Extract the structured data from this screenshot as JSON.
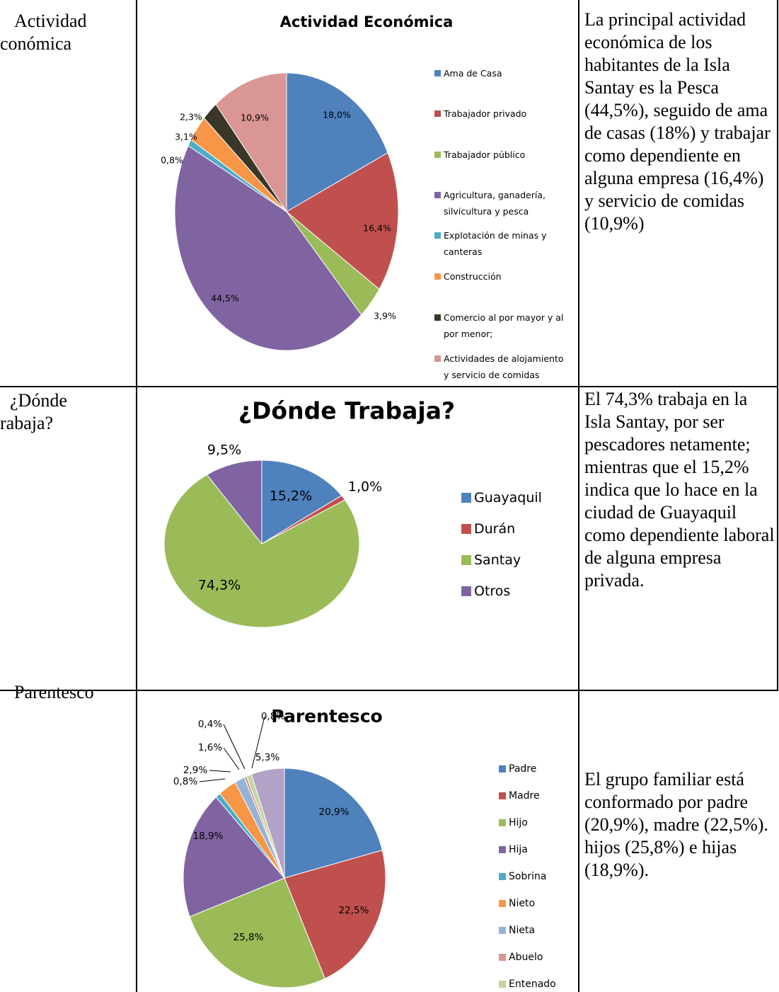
{
  "chart_data": [
    {
      "type": "pie",
      "title": "Actividad Económica",
      "categories": [
        "Ama de Casa",
        "Trabajador privado",
        "Trabajador público",
        "Agricultura, ganadería, silvicultura y pesca",
        "Explotación de minas y canteras",
        "Construcción",
        "Comercio al por mayor y al por menor;",
        "Actividades de alojamiento y servicio de comidas"
      ],
      "values": [
        18.0,
        16.4,
        3.9,
        44.5,
        0.8,
        3.1,
        2.3,
        10.9
      ],
      "value_labels": [
        "18,0%",
        "16,4%",
        "3,9%",
        "44,5%",
        "0,8%",
        "3,1%",
        "2,3%",
        "10,9%"
      ],
      "colors": [
        "#4f81bd",
        "#c0504d",
        "#9bbb59",
        "#8064a2",
        "#4bacc6",
        "#f79646",
        "#3a3628",
        "#d99694"
      ]
    },
    {
      "type": "pie",
      "title": "¿Dónde Trabaja?",
      "categories": [
        "Guayaquil",
        "Durán",
        "Santay",
        "Otros"
      ],
      "values": [
        15.2,
        1.0,
        74.3,
        9.5
      ],
      "value_labels": [
        "15,2%",
        "1,0%",
        "74,3%",
        "9,5%"
      ],
      "colors": [
        "#4f81bd",
        "#c0504d",
        "#9bbb59",
        "#8064a2"
      ]
    },
    {
      "type": "pie",
      "title": "Parentesco",
      "categories": [
        "Padre",
        "Madre",
        "Hijo",
        "Hija",
        "Sobrina",
        "Nieto",
        "Nieta",
        "Abuelo",
        "Entenado",
        null
      ],
      "values": [
        20.9,
        22.5,
        25.8,
        18.9,
        0.8,
        2.9,
        1.6,
        0.4,
        0.8,
        5.3
      ],
      "value_labels": [
        "20,9%",
        "22,5%",
        "25,8%",
        "18,9%",
        "0,8%",
        "2,9%",
        "1,6%",
        "0,4%",
        "0,8%",
        "5,3%"
      ],
      "colors": [
        "#4f81bd",
        "#c0504d",
        "#9bbb59",
        "#8064a2",
        "#4bacc6",
        "#f79646",
        "#95b3d7",
        "#d99694",
        "#c3d69b",
        "#b2a2c7"
      ]
    }
  ],
  "table": {
    "rows": [
      {
        "label": [
          "Actividad",
          "conómica"
        ],
        "text": "La principal actividad económica de los habitantes de la Isla Santay es la Pesca (44,5%), seguido de ama de casas (18%) y trabajar como dependiente en alguna empresa (16,4%) y servicio de comidas (10,9%)"
      },
      {
        "label": [
          "¿Dónde",
          "rabaja?"
        ],
        "text": "El 74,3% trabaja en la Isla Santay, por ser pescadores netamente; mientras que el 15,2% indica que lo hace en la ciudad de Guayaquil como dependiente laboral de alguna empresa privada."
      },
      {
        "label": [
          "Parentesco"
        ],
        "text": "El grupo familiar está conformado por padre (20,9%), madre (22,5%). hijos (25,8%) e hijas (18,9%)."
      }
    ]
  }
}
